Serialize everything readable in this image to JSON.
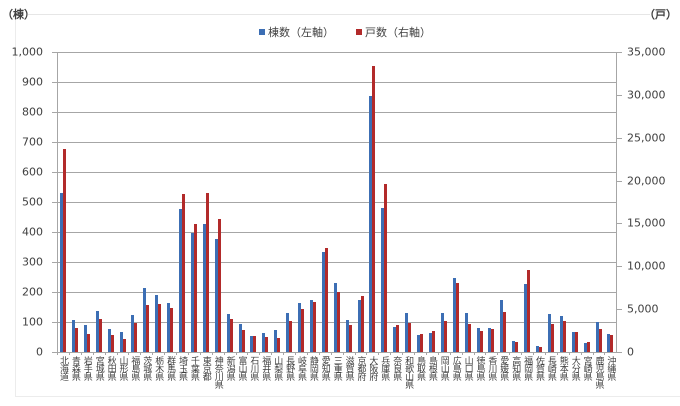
{
  "chart_data": {
    "type": "bar",
    "title": "",
    "unit_left": "（棟）",
    "unit_right": "（戸）",
    "xlabel": "",
    "ylabel": "棟数",
    "y2label": "戸数",
    "ylim": [
      0,
      1000
    ],
    "y2lim": [
      0,
      35000
    ],
    "yticks": [
      "0",
      "100",
      "200",
      "300",
      "400",
      "500",
      "600",
      "700",
      "800",
      "900",
      "1,000"
    ],
    "y2ticks": [
      "0",
      "5,000",
      "10,000",
      "15,000",
      "20,000",
      "25,000",
      "30,000",
      "35,000"
    ],
    "grid": true,
    "legend_position": "top",
    "categories": [
      "北海道",
      "青森県",
      "岩手県",
      "宮城県",
      "秋田県",
      "山形県",
      "福島県",
      "茨城県",
      "栃木県",
      "群馬県",
      "埼玉県",
      "千葉県",
      "東京都",
      "神奈川県",
      "新潟県",
      "富山県",
      "石川県",
      "福井県",
      "山梨県",
      "長野県",
      "岐阜県",
      "静岡県",
      "愛知県",
      "三重県",
      "滋賀県",
      "京都府",
      "大阪府",
      "兵庫県",
      "奈良県",
      "和歌山県",
      "鳥取県",
      "島根県",
      "岡山県",
      "広島県",
      "山口県",
      "徳島県",
      "香川県",
      "愛媛県",
      "高知県",
      "福岡県",
      "佐賀県",
      "長崎県",
      "熊本県",
      "大分県",
      "宮崎県",
      "鹿児島県",
      "沖縄県"
    ],
    "series": [
      {
        "name": "棟数（左軸）",
        "axis": "left",
        "color": "#3c6eb4",
        "values": [
          530,
          108,
          90,
          137,
          77,
          67,
          123,
          213,
          190,
          163,
          477,
          397,
          427,
          377,
          127,
          93,
          53,
          63,
          73,
          130,
          163,
          173,
          333,
          230,
          107,
          173,
          853,
          480,
          83,
          130,
          57,
          63,
          130,
          247,
          130,
          80,
          80,
          173,
          37,
          227,
          20,
          127,
          120,
          67,
          30,
          100,
          60
        ]
      },
      {
        "name": "戸数（右軸）",
        "axis": "right",
        "color": "#b22a2a",
        "values": [
          23700,
          2800,
          2100,
          3850,
          2000,
          1500,
          3400,
          5500,
          5600,
          5100,
          18400,
          14900,
          18500,
          15500,
          3850,
          2570,
          1870,
          1750,
          1630,
          3620,
          5000,
          5830,
          12130,
          7000,
          3150,
          6530,
          33400,
          19600,
          3150,
          3380,
          2100,
          2450,
          3620,
          8050,
          3270,
          2450,
          2680,
          4670,
          1170,
          9570,
          580,
          3270,
          3620,
          2330,
          1170,
          2680,
          1980
        ]
      }
    ]
  },
  "legend": {
    "items": [
      {
        "label": "棟数（左軸）",
        "color": "#3c6eb4"
      },
      {
        "label": "戸数（右軸）",
        "color": "#b22a2a"
      }
    ]
  }
}
